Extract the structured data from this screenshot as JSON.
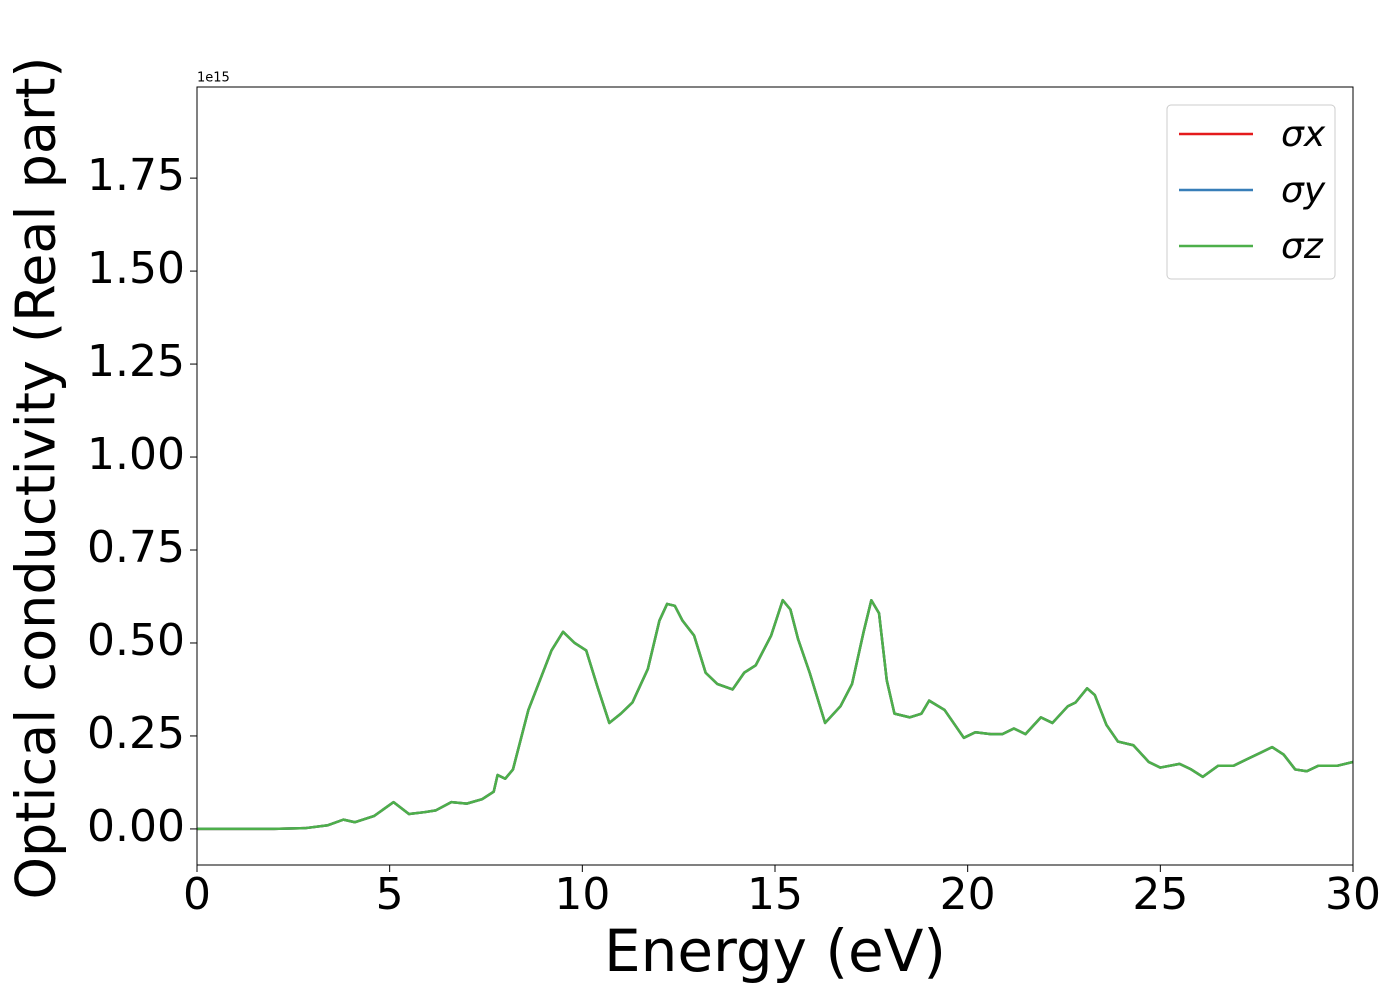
{
  "chart_data": {
    "type": "line",
    "xlabel": "Energy (eV)",
    "ylabel": "Optical conductivity (Real part)",
    "y_offset_text": "1e15",
    "xlim": [
      0,
      30
    ],
    "xticks": [
      0,
      5,
      10,
      15,
      20,
      25,
      30
    ],
    "ylim": [
      -0.097,
      1.995
    ],
    "yticks": [
      {
        "value": 0,
        "label": "0.00"
      },
      0.25,
      {
        "value": 0.5,
        "label": "0.50"
      },
      0.75,
      {
        "value": 1,
        "label": "1.00"
      },
      1.25,
      {
        "value": 1.5,
        "label": "1.50"
      },
      1.75
    ],
    "grid": false,
    "legend": "upper right",
    "x": [
      0,
      1,
      2,
      2.8,
      3.4,
      3.8,
      4.1,
      4.6,
      5.1,
      5.5,
      5.9,
      6.2,
      6.6,
      7.0,
      7.4,
      7.7,
      7.8,
      8.0,
      8.2,
      8.6,
      8.9,
      9.2,
      9.5,
      9.8,
      10.1,
      10.4,
      10.7,
      11.0,
      11.3,
      11.7,
      12.0,
      12.2,
      12.4,
      12.6,
      12.9,
      13.2,
      13.5,
      13.9,
      14.2,
      14.5,
      14.9,
      15.2,
      15.4,
      15.6,
      15.9,
      16.3,
      16.7,
      17.0,
      17.3,
      17.5,
      17.7,
      17.9,
      18.1,
      18.5,
      18.8,
      19.0,
      19.4,
      19.6,
      19.9,
      20.2,
      20.6,
      20.9,
      21.2,
      21.5,
      21.9,
      22.2,
      22.6,
      22.8,
      23.1,
      23.3,
      23.6,
      23.9,
      24.3,
      24.7,
      25.0,
      25.5,
      25.8,
      26.1,
      26.5,
      26.9,
      27.3,
      27.6,
      27.9,
      28.2,
      28.5,
      28.8,
      29.1,
      29.6,
      30
    ],
    "series": [
      {
        "name": "σx",
        "color": "#e41a1c",
        "values": [
          0,
          0,
          0,
          0.002,
          0.01,
          0.025,
          0.018,
          0.035,
          0.072,
          0.04,
          0.045,
          0.05,
          0.072,
          0.068,
          0.08,
          0.1,
          0.145,
          0.135,
          0.16,
          0.32,
          0.4,
          0.48,
          0.53,
          0.5,
          0.48,
          0.38,
          0.285,
          0.31,
          0.34,
          0.43,
          0.56,
          0.605,
          0.6,
          0.56,
          0.52,
          0.42,
          0.39,
          0.375,
          0.42,
          0.44,
          0.52,
          0.615,
          0.59,
          0.51,
          0.42,
          0.285,
          0.33,
          0.39,
          0.53,
          0.615,
          0.58,
          0.4,
          0.31,
          0.3,
          0.31,
          0.345,
          0.32,
          0.29,
          0.245,
          0.26,
          0.255,
          0.255,
          0.27,
          0.255,
          0.3,
          0.285,
          0.33,
          0.34,
          0.378,
          0.36,
          0.28,
          0.235,
          0.225,
          0.18,
          0.165,
          0.175,
          0.16,
          0.14,
          0.17,
          0.17,
          0.19,
          0.205,
          0.22,
          0.2,
          0.16,
          0.155,
          0.17,
          0.17,
          0.18
        ]
      },
      {
        "name": "σy",
        "color": "#377eb8",
        "values": [
          0,
          0,
          0,
          0.002,
          0.01,
          0.025,
          0.018,
          0.035,
          0.072,
          0.04,
          0.045,
          0.05,
          0.072,
          0.068,
          0.08,
          0.1,
          0.145,
          0.135,
          0.16,
          0.32,
          0.4,
          0.48,
          0.53,
          0.5,
          0.48,
          0.38,
          0.285,
          0.31,
          0.34,
          0.43,
          0.56,
          0.605,
          0.6,
          0.56,
          0.52,
          0.42,
          0.39,
          0.375,
          0.42,
          0.44,
          0.52,
          0.615,
          0.59,
          0.51,
          0.42,
          0.285,
          0.33,
          0.39,
          0.53,
          0.615,
          0.58,
          0.4,
          0.31,
          0.3,
          0.31,
          0.345,
          0.32,
          0.29,
          0.245,
          0.26,
          0.255,
          0.255,
          0.27,
          0.255,
          0.3,
          0.285,
          0.33,
          0.34,
          0.378,
          0.36,
          0.28,
          0.235,
          0.225,
          0.18,
          0.165,
          0.175,
          0.16,
          0.14,
          0.17,
          0.17,
          0.19,
          0.205,
          0.22,
          0.2,
          0.16,
          0.155,
          0.17,
          0.17,
          0.18
        ]
      },
      {
        "name": "σz",
        "color": "#4daf4a",
        "values": [
          0,
          0,
          0,
          0.002,
          0.01,
          0.025,
          0.018,
          0.035,
          0.072,
          0.04,
          0.045,
          0.05,
          0.072,
          0.068,
          0.08,
          0.1,
          0.145,
          0.135,
          0.16,
          0.32,
          0.4,
          0.48,
          0.53,
          0.5,
          0.48,
          0.38,
          0.285,
          0.31,
          0.34,
          0.43,
          0.56,
          0.605,
          0.6,
          0.56,
          0.52,
          0.42,
          0.39,
          0.375,
          0.42,
          0.44,
          0.52,
          0.615,
          0.59,
          0.51,
          0.42,
          0.285,
          0.33,
          0.39,
          0.53,
          0.615,
          0.58,
          0.4,
          0.31,
          0.3,
          0.31,
          0.345,
          0.32,
          0.29,
          0.245,
          0.26,
          0.255,
          0.255,
          0.27,
          0.255,
          0.3,
          0.285,
          0.33,
          0.34,
          0.378,
          0.36,
          0.28,
          0.235,
          0.225,
          0.18,
          0.165,
          0.175,
          0.16,
          0.14,
          0.17,
          0.17,
          0.19,
          0.205,
          0.22,
          0.2,
          0.16,
          0.155,
          0.17,
          0.17,
          0.18
        ]
      }
    ]
  }
}
